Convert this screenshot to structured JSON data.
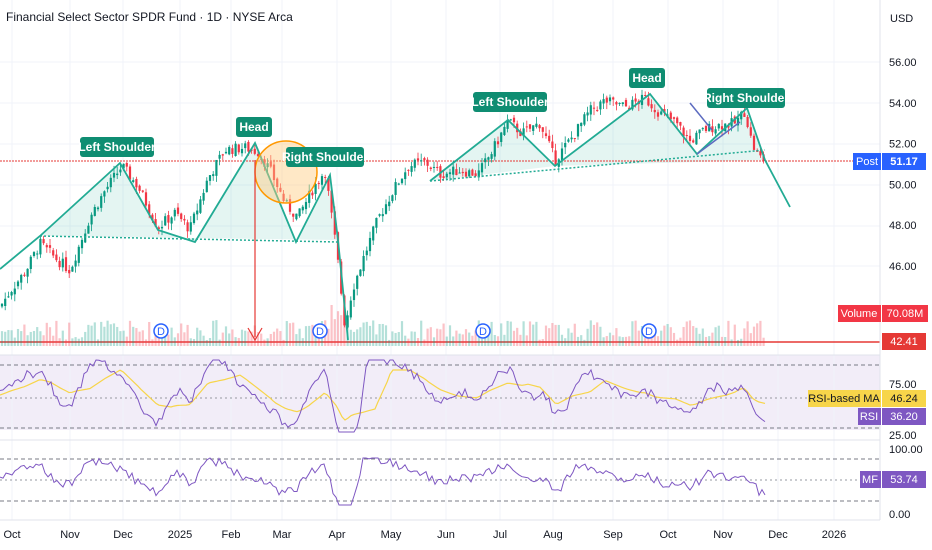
{
  "title": "Financial Select Sector SPDR Fund · 1D · NYSE Arca",
  "currency": "USD",
  "colors": {
    "up": "#089981",
    "down": "#f23645",
    "pattern": "#22ab94",
    "rsi": "#7e57c2",
    "rsi_ma": "#f7d54a",
    "neckline_red": "#e53935",
    "post": "#2962ff",
    "volume_badge": "#f23645"
  },
  "chart_data": [
    {
      "type": "candlestick",
      "x_labels": [
        "Oct",
        "Nov",
        "Dec",
        "2025",
        "Feb",
        "Mar",
        "Apr",
        "May",
        "Jun",
        "Jul",
        "Aug",
        "Sep",
        "Oct",
        "Nov",
        "Dec",
        "2026"
      ],
      "y_ticks": [
        "56.00",
        "54.00",
        "52.00",
        "50.00",
        "48.00",
        "46.00"
      ],
      "ylim": [
        41.6,
        57.7
      ],
      "price_path": [
        [
          0,
          44.0
        ],
        [
          12,
          44.9
        ],
        [
          25,
          45.7
        ],
        [
          40,
          47.1
        ],
        [
          55,
          46.4
        ],
        [
          70,
          45.8
        ],
        [
          90,
          48.4
        ],
        [
          105,
          49.7
        ],
        [
          122,
          50.9
        ],
        [
          138,
          49.9
        ],
        [
          158,
          47.9
        ],
        [
          175,
          48.6
        ],
        [
          190,
          47.8
        ],
        [
          208,
          50.3
        ],
        [
          225,
          51.7
        ],
        [
          245,
          51.8
        ],
        [
          258,
          51.6
        ],
        [
          270,
          50.7
        ],
        [
          286,
          49.0
        ],
        [
          298,
          48.4
        ],
        [
          312,
          49.7
        ],
        [
          325,
          50.7
        ],
        [
          337,
          46.6
        ],
        [
          345,
          43.0
        ],
        [
          352,
          44.8
        ],
        [
          365,
          46.6
        ],
        [
          378,
          48.3
        ],
        [
          392,
          49.6
        ],
        [
          408,
          50.9
        ],
        [
          425,
          51.1
        ],
        [
          440,
          50.5
        ],
        [
          460,
          50.7
        ],
        [
          478,
          50.5
        ],
        [
          492,
          51.6
        ],
        [
          508,
          53.1
        ],
        [
          522,
          52.5
        ],
        [
          540,
          53.0
        ],
        [
          555,
          51.2
        ],
        [
          572,
          52.3
        ],
        [
          590,
          53.6
        ],
        [
          605,
          54.1
        ],
        [
          625,
          53.8
        ],
        [
          645,
          54.2
        ],
        [
          660,
          53.5
        ],
        [
          676,
          53.0
        ],
        [
          690,
          52.1
        ],
        [
          705,
          52.7
        ],
        [
          718,
          52.9
        ],
        [
          735,
          53.0
        ],
        [
          745,
          53.6
        ],
        [
          752,
          52.0
        ],
        [
          758,
          51.4
        ],
        [
          765,
          51.17
        ]
      ],
      "last_price": 51.17,
      "post_label": "Post",
      "post_value": "51.17",
      "low_marker": "42.41",
      "volume_label": "Volume",
      "volume_value": "70.08M",
      "dividend_marker": "D",
      "patterns": [
        {
          "left_shoulder": "Left Shoulder",
          "head": "Head",
          "right_shoulder": "Right Shoulder"
        },
        {
          "left_shoulder": "Left Shoulder",
          "head": "Head",
          "right_shoulder": "Right Shoulder"
        }
      ]
    },
    {
      "type": "line",
      "name": "RSI",
      "y_ticks": [
        "75.00",
        "25.00"
      ],
      "ylim": [
        0,
        100
      ],
      "rsi_label": "RSI",
      "rsi_value": "36.20",
      "ma_label": "RSI-based MA",
      "ma_value": "46.24"
    },
    {
      "type": "line",
      "name": "MF",
      "y_ticks": [
        "100.00",
        "0.00"
      ],
      "ylim": [
        0,
        100
      ],
      "mf_label": "MF",
      "mf_value": "53.74"
    }
  ]
}
